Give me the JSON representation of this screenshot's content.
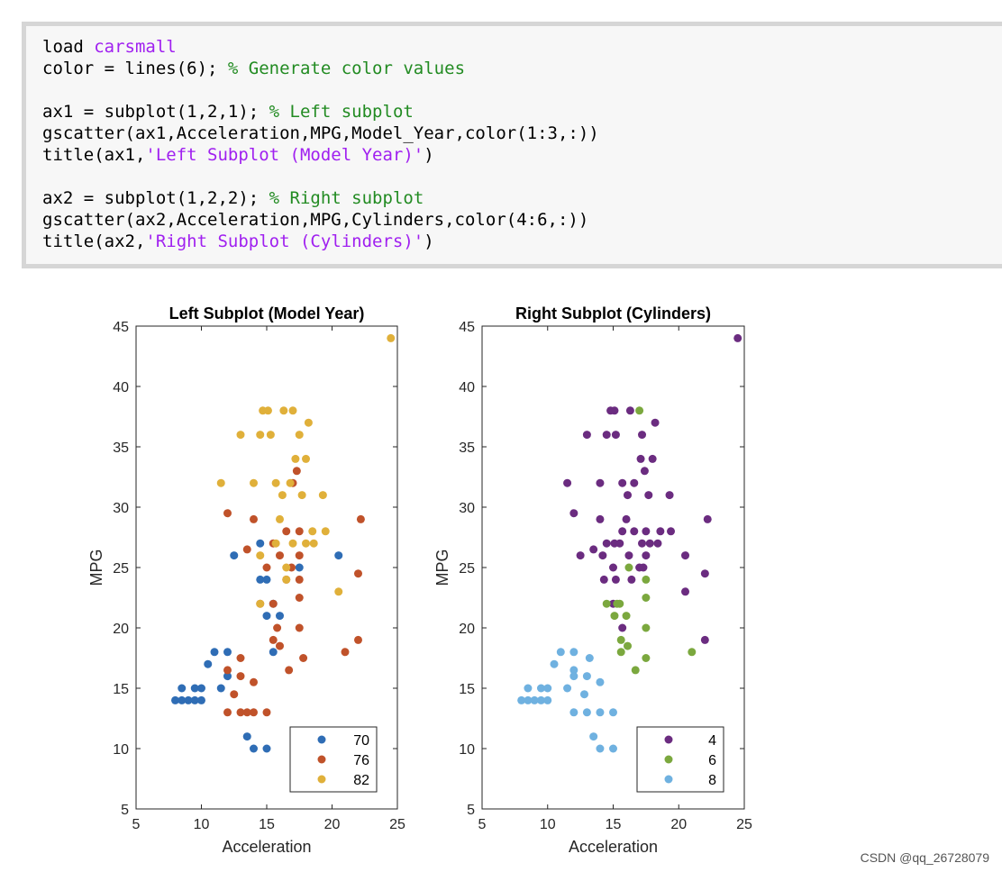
{
  "code": {
    "lines": [
      [
        {
          "t": "load ",
          "c": "kw"
        },
        {
          "t": "carsmall",
          "c": "str"
        }
      ],
      [
        {
          "t": "color = lines(6); ",
          "c": "kw"
        },
        {
          "t": "% Generate color values",
          "c": "cmt"
        }
      ],
      [],
      [
        {
          "t": "ax1 = subplot(1,2,1); ",
          "c": "kw"
        },
        {
          "t": "% Left subplot",
          "c": "cmt"
        }
      ],
      [
        {
          "t": "gscatter(ax1,Acceleration,MPG,Model_Year,color(1:3,:))",
          "c": "kw"
        }
      ],
      [
        {
          "t": "title(ax1,",
          "c": "kw"
        },
        {
          "t": "'Left Subplot (Model Year)'",
          "c": "str"
        },
        {
          "t": ")",
          "c": "kw"
        }
      ],
      [],
      [
        {
          "t": "ax2 = subplot(1,2,2); ",
          "c": "kw"
        },
        {
          "t": "% Right subplot",
          "c": "cmt"
        }
      ],
      [
        {
          "t": "gscatter(ax2,Acceleration,MPG,Cylinders,color(4:6,:))",
          "c": "kw"
        }
      ],
      [
        {
          "t": "title(ax2,",
          "c": "kw"
        },
        {
          "t": "'Right Subplot (Cylinders)'",
          "c": "str"
        },
        {
          "t": ")",
          "c": "kw"
        }
      ]
    ]
  },
  "chart_data": [
    {
      "type": "scatter",
      "title": "Left Subplot (Model Year)",
      "xlabel": "Acceleration",
      "ylabel": "MPG",
      "xlim": [
        5,
        25
      ],
      "ylim": [
        5,
        45
      ],
      "xticks": [
        5,
        10,
        15,
        20,
        25
      ],
      "yticks": [
        5,
        10,
        15,
        20,
        25,
        30,
        35,
        40,
        45
      ],
      "legend_position": "bottom-right",
      "series": [
        {
          "name": "70",
          "color": "#2f6db5",
          "points": [
            [
              8,
              14
            ],
            [
              8.5,
              14
            ],
            [
              9,
              14
            ],
            [
              9.5,
              14
            ],
            [
              10,
              14
            ],
            [
              8.5,
              15
            ],
            [
              9.5,
              15
            ],
            [
              10,
              15
            ],
            [
              10.5,
              17
            ],
            [
              11,
              18
            ],
            [
              11.5,
              15
            ],
            [
              12,
              18
            ],
            [
              12,
              16
            ],
            [
              12.5,
              26
            ],
            [
              13.5,
              11
            ],
            [
              14,
              10
            ],
            [
              15,
              10
            ],
            [
              14.5,
              24
            ],
            [
              15,
              24
            ],
            [
              14.5,
              27
            ],
            [
              15,
              21
            ],
            [
              16,
              21
            ],
            [
              15.5,
              18
            ],
            [
              15.5,
              22
            ],
            [
              17.5,
              25
            ],
            [
              20.5,
              26
            ]
          ]
        },
        {
          "name": "76",
          "color": "#c0522a",
          "points": [
            [
              12,
              13
            ],
            [
              13,
              13
            ],
            [
              13.5,
              13
            ],
            [
              14,
              13
            ],
            [
              15,
              13
            ],
            [
              12.5,
              14.5
            ],
            [
              13,
              16
            ],
            [
              14,
              15.5
            ],
            [
              12,
              16.5
            ],
            [
              13,
              17.5
            ],
            [
              12,
              29.5
            ],
            [
              13.5,
              26.5
            ],
            [
              14,
              29
            ],
            [
              14.5,
              22
            ],
            [
              15,
              25
            ],
            [
              15.5,
              27
            ],
            [
              15.5,
              22
            ],
            [
              15.5,
              19
            ],
            [
              15.8,
              20
            ],
            [
              16,
              18.5
            ],
            [
              16,
              26
            ],
            [
              16.5,
              28
            ],
            [
              16.7,
              16.5
            ],
            [
              16.5,
              24
            ],
            [
              16.9,
              25
            ],
            [
              17,
              32
            ],
            [
              17.3,
              33
            ],
            [
              17.5,
              28
            ],
            [
              17.5,
              26
            ],
            [
              17.5,
              24
            ],
            [
              17.5,
              22.5
            ],
            [
              17.5,
              20
            ],
            [
              17.8,
              17.5
            ],
            [
              21,
              18
            ],
            [
              22,
              19
            ],
            [
              22,
              24.5
            ],
            [
              22.2,
              29
            ]
          ]
        },
        {
          "name": "82",
          "color": "#e0b03a",
          "points": [
            [
              24.5,
              44
            ],
            [
              14.7,
              38
            ],
            [
              15.1,
              38
            ],
            [
              16.3,
              38
            ],
            [
              17,
              38
            ],
            [
              18.2,
              37
            ],
            [
              13,
              36
            ],
            [
              14.5,
              36
            ],
            [
              15.3,
              36
            ],
            [
              17.5,
              36
            ],
            [
              17.2,
              34
            ],
            [
              18,
              34
            ],
            [
              11.5,
              32
            ],
            [
              14,
              32
            ],
            [
              15.7,
              32
            ],
            [
              16.8,
              32
            ],
            [
              16.2,
              31
            ],
            [
              17.7,
              31
            ],
            [
              19.3,
              31
            ],
            [
              16,
              29
            ],
            [
              17,
              27
            ],
            [
              18,
              27
            ],
            [
              18.6,
              27
            ],
            [
              18.5,
              28
            ],
            [
              19.5,
              28
            ],
            [
              15.7,
              27
            ],
            [
              14.5,
              26
            ],
            [
              16.5,
              25
            ],
            [
              16.5,
              24
            ],
            [
              14.5,
              22
            ],
            [
              20.5,
              23
            ]
          ]
        }
      ]
    },
    {
      "type": "scatter",
      "title": "Right Subplot (Cylinders)",
      "xlabel": "Acceleration",
      "ylabel": "MPG",
      "xlim": [
        5,
        25
      ],
      "ylim": [
        5,
        45
      ],
      "xticks": [
        5,
        10,
        15,
        20,
        25
      ],
      "yticks": [
        5,
        10,
        15,
        20,
        25,
        30,
        35,
        40,
        45
      ],
      "legend_position": "bottom-right",
      "series": [
        {
          "name": "4",
          "color": "#6b2c80",
          "points": [
            [
              24.5,
              44
            ],
            [
              14.8,
              38
            ],
            [
              15.1,
              38
            ],
            [
              16.3,
              38
            ],
            [
              18.2,
              37
            ],
            [
              13,
              36
            ],
            [
              14.5,
              36
            ],
            [
              15.2,
              36
            ],
            [
              17.2,
              36
            ],
            [
              17.1,
              34
            ],
            [
              18,
              34
            ],
            [
              17.4,
              33
            ],
            [
              11.5,
              32
            ],
            [
              14,
              32
            ],
            [
              15.7,
              32
            ],
            [
              16.6,
              32
            ],
            [
              16.1,
              31
            ],
            [
              17.7,
              31
            ],
            [
              19.3,
              31
            ],
            [
              12,
              29.5
            ],
            [
              14,
              29
            ],
            [
              16,
              29
            ],
            [
              22.2,
              29
            ],
            [
              15.7,
              28
            ],
            [
              16.6,
              28
            ],
            [
              17.5,
              28
            ],
            [
              18.6,
              28
            ],
            [
              19.4,
              28
            ],
            [
              14.5,
              27
            ],
            [
              15.1,
              27
            ],
            [
              15.5,
              27
            ],
            [
              17.2,
              27
            ],
            [
              17.8,
              27
            ],
            [
              18.4,
              27
            ],
            [
              13.5,
              26.5
            ],
            [
              12.5,
              26
            ],
            [
              14.2,
              26
            ],
            [
              16.2,
              26
            ],
            [
              17.5,
              26
            ],
            [
              20.5,
              26
            ],
            [
              15,
              25
            ],
            [
              17,
              25
            ],
            [
              17.3,
              25
            ],
            [
              22,
              24.5
            ],
            [
              14.3,
              24
            ],
            [
              15.2,
              24
            ],
            [
              16.4,
              24
            ],
            [
              20.5,
              23
            ],
            [
              15,
              22
            ],
            [
              15.7,
              20
            ],
            [
              22,
              19
            ]
          ]
        },
        {
          "name": "6",
          "color": "#7ba83e",
          "points": [
            [
              17,
              38
            ],
            [
              14.5,
              22
            ],
            [
              15.3,
              22
            ],
            [
              15.5,
              22
            ],
            [
              15.1,
              21
            ],
            [
              16,
              21
            ],
            [
              15.6,
              19
            ],
            [
              15.6,
              18
            ],
            [
              16.1,
              18.5
            ],
            [
              16.7,
              16.5
            ],
            [
              17.5,
              17.5
            ],
            [
              17.5,
              20
            ],
            [
              17.5,
              22.5
            ],
            [
              17.5,
              24
            ],
            [
              16.2,
              25
            ],
            [
              21,
              18
            ]
          ]
        },
        {
          "name": "8",
          "color": "#6fb1e0",
          "points": [
            [
              8,
              14
            ],
            [
              8.5,
              14
            ],
            [
              9,
              14
            ],
            [
              9.5,
              14
            ],
            [
              10,
              14
            ],
            [
              8.5,
              15
            ],
            [
              9.5,
              15
            ],
            [
              10,
              15
            ],
            [
              10.5,
              17
            ],
            [
              11,
              18
            ],
            [
              11.5,
              15
            ],
            [
              12,
              18
            ],
            [
              12,
              16.5
            ],
            [
              12,
              16
            ],
            [
              12,
              13
            ],
            [
              13,
              13
            ],
            [
              14,
              13
            ],
            [
              15,
              13
            ],
            [
              13.2,
              17.5
            ],
            [
              12.8,
              14.5
            ],
            [
              13,
              16
            ],
            [
              13.5,
              11
            ],
            [
              14,
              10
            ],
            [
              15,
              10
            ],
            [
              14,
              15.5
            ]
          ]
        }
      ]
    }
  ],
  "footer": {
    "watermark": "CSDN @qq_26728079"
  }
}
